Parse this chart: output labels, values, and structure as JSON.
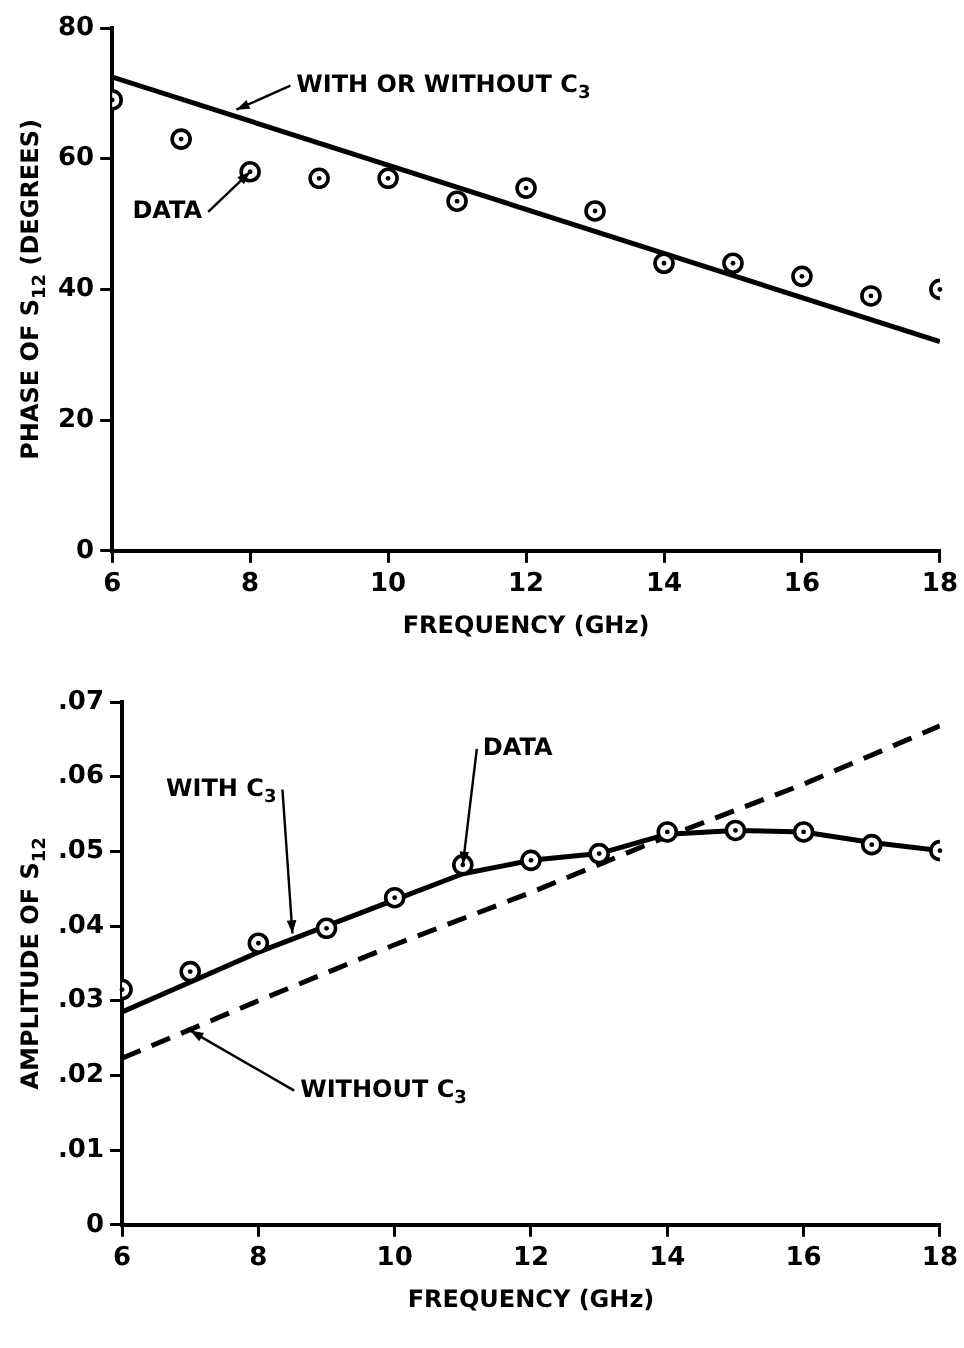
{
  "chart_data": [
    {
      "type": "scatter",
      "xlabel": "FREQUENCY (GHz)",
      "ylabel": "PHASE OF S$_{12}$ (DEGREES)",
      "xlim": [
        6,
        18
      ],
      "xticks": [
        6,
        8,
        10,
        12,
        14,
        16,
        18
      ],
      "ylim": [
        0,
        80
      ],
      "yticks": [
        0,
        20,
        40,
        60,
        80
      ],
      "grid": false,
      "legend": false,
      "marker": "circle",
      "series": [
        {
          "color": "#000000",
          "x": [
            6,
            7,
            8,
            9,
            10,
            11,
            12,
            13,
            14,
            15,
            16,
            17,
            18
          ],
          "values": [
            69,
            63,
            58,
            57,
            57,
            53.5,
            55.5,
            52,
            44,
            44,
            42,
            39,
            40
          ]
        },
        {
          "type": "line",
          "color": "#000000",
          "line_style": "solid",
          "marker": "none",
          "x": [
            6,
            18
          ],
          "values": [
            72.5,
            32
          ]
        }
      ],
      "annotations": [
        {
          "text": "WITH OR WITHOUT C$_{3}$",
          "x": 7.8,
          "y": 67.5
        },
        {
          "text": "DATA",
          "x": 8,
          "y": 58
        }
      ]
    },
    {
      "type": "scatter",
      "xlabel": "FREQUENCY (GHz)",
      "ylabel": "AMPLITUDE OF S$_{12}$",
      "xlim": [
        6,
        18
      ],
      "xticks": [
        6,
        8,
        10,
        12,
        14,
        16,
        18
      ],
      "ylim": [
        0,
        0.07
      ],
      "yticks": [
        {
          "value": 0,
          "label": "0"
        },
        {
          "value": 0.01,
          "label": ".01"
        },
        {
          "value": 0.02,
          "label": ".02"
        },
        {
          "value": 0.03,
          "label": ".03"
        },
        {
          "value": 0.04,
          "label": ".04"
        },
        {
          "value": 0.05,
          "label": ".05"
        },
        {
          "value": 0.06,
          "label": ".06"
        },
        {
          "value": 0.07,
          "label": ".07"
        }
      ],
      "grid": false,
      "legend": false,
      "marker": "circle",
      "series": [
        {
          "color": "#000000",
          "x": [
            6,
            7,
            8,
            9,
            10,
            11,
            12,
            13,
            14,
            15,
            16,
            17,
            18
          ],
          "values": [
            0.0315,
            0.0339,
            0.0377,
            0.0397,
            0.0438,
            0.0482,
            0.0488,
            0.0497,
            0.0526,
            0.0528,
            0.0526,
            0.0509,
            0.0501
          ]
        },
        {
          "type": "line",
          "color": "#000000",
          "line_style": "solid",
          "marker": "none",
          "x": [
            6,
            8,
            10,
            11,
            12,
            13,
            14,
            15,
            16,
            17,
            18
          ],
          "values": [
            0.0285,
            0.0365,
            0.0435,
            0.047,
            0.0488,
            0.0497,
            0.0523,
            0.0528,
            0.0526,
            0.0512,
            0.0501
          ]
        },
        {
          "type": "line",
          "color": "#000000",
          "line_style": "dashed",
          "marker": "none",
          "x": [
            6,
            8,
            10,
            12,
            14,
            16,
            18
          ],
          "values": [
            0.0223,
            0.03,
            0.0375,
            0.0445,
            0.052,
            0.059,
            0.0668
          ]
        }
      ],
      "annotations": [
        {
          "text": "WITH C$_{3}$",
          "x": 8.5,
          "y": 0.039
        },
        {
          "text": "DATA",
          "x": 11,
          "y": 0.0482
        },
        {
          "text": "WITHOUT C$_{3}$",
          "x": 7,
          "y": 0.026
        }
      ]
    }
  ]
}
